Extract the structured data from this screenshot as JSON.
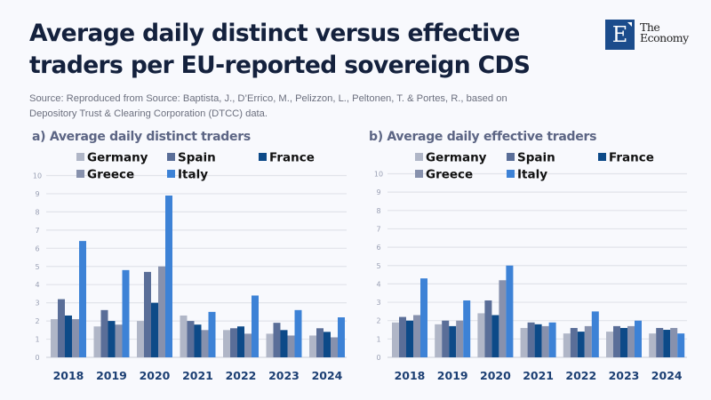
{
  "header": {
    "title": "Average daily distinct versus effective traders per EU-reported sovereign CDS",
    "title_line1": "Average daily distinct versus effective",
    "title_line2": "traders per EU-reported sovereign CDS",
    "source_line1": "Source: Reproduced from Source: Baptista, J., D’Errico, M., Pelizzon, L., Peltonen, T. & Portes, R., based on",
    "source_line2": "Depository Trust & Clearing Corporation (DTCC) data."
  },
  "logo": {
    "letter": "E",
    "line1": "The",
    "line2": "Economy",
    "color": "#1b4c8c"
  },
  "series_colors": {
    "Germany": "#b0b6c7",
    "Spain": "#5a6e98",
    "France": "#0d4a88",
    "Greece": "#8791ad",
    "Italy": "#3d82d6"
  },
  "chart_data": [
    {
      "type": "bar",
      "title": "a) Average daily distinct traders",
      "xlabel": "",
      "ylabel": "",
      "ylim": [
        0,
        10
      ],
      "yticks": [
        "0",
        "1",
        "2",
        "3",
        "4",
        "5",
        "6",
        "7",
        "8",
        "9",
        "10"
      ],
      "grid": true,
      "legend": [
        "Germany",
        "Spain",
        "France",
        "Greece",
        "Italy"
      ],
      "legend_position": "top",
      "categories": [
        "2018",
        "2019",
        "2020",
        "2021",
        "2022",
        "2023",
        "2024"
      ],
      "series": [
        {
          "name": "Germany",
          "values": [
            2.1,
            1.7,
            2.0,
            2.3,
            1.5,
            1.3,
            1.2
          ]
        },
        {
          "name": "Spain",
          "values": [
            3.2,
            2.6,
            4.7,
            2.0,
            1.6,
            1.9,
            1.6
          ]
        },
        {
          "name": "France",
          "values": [
            2.3,
            2.0,
            3.0,
            1.8,
            1.7,
            1.5,
            1.4
          ]
        },
        {
          "name": "Greece",
          "values": [
            2.1,
            1.8,
            5.0,
            1.5,
            1.3,
            1.2,
            1.1
          ]
        },
        {
          "name": "Italy",
          "values": [
            6.4,
            4.8,
            8.9,
            2.5,
            3.4,
            2.6,
            2.2
          ]
        }
      ]
    },
    {
      "type": "bar",
      "title": "b) Average daily effective traders",
      "xlabel": "",
      "ylabel": "",
      "ylim": [
        0,
        10
      ],
      "yticks": [
        "0",
        "1",
        "2",
        "3",
        "4",
        "5",
        "6",
        "7",
        "8",
        "9",
        "10"
      ],
      "grid": true,
      "legend": [
        "Germany",
        "Spain",
        "France",
        "Greece",
        "Italy"
      ],
      "legend_position": "top",
      "categories": [
        "2018",
        "2019",
        "2020",
        "2021",
        "2022",
        "2023",
        "2024"
      ],
      "series": [
        {
          "name": "Germany",
          "values": [
            1.9,
            1.8,
            2.4,
            1.6,
            1.3,
            1.4,
            1.3
          ]
        },
        {
          "name": "Spain",
          "values": [
            2.2,
            2.0,
            3.1,
            1.9,
            1.6,
            1.7,
            1.6
          ]
        },
        {
          "name": "France",
          "values": [
            2.0,
            1.7,
            2.3,
            1.8,
            1.4,
            1.6,
            1.5
          ]
        },
        {
          "name": "Greece",
          "values": [
            2.3,
            2.0,
            4.2,
            1.7,
            1.7,
            1.7,
            1.6
          ]
        },
        {
          "name": "Italy",
          "values": [
            4.3,
            3.1,
            5.0,
            1.9,
            2.5,
            2.0,
            1.3
          ]
        }
      ]
    }
  ]
}
